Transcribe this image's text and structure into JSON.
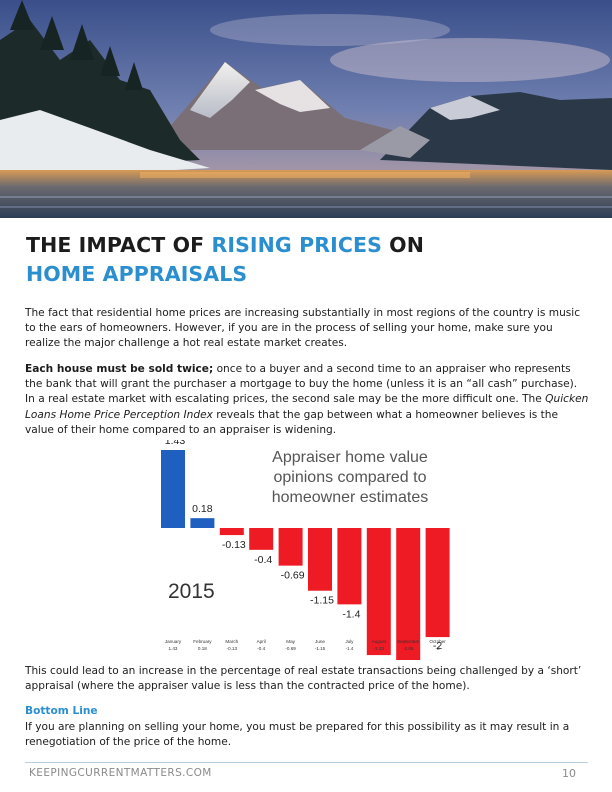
{
  "hero": {
    "image": "mountain-lake-landscape"
  },
  "title": {
    "part1": "THE IMPACT OF ",
    "accent": "RISING PRICES",
    "part2": " ON",
    "line2": "HOME APPRAISALS"
  },
  "paragraphs": {
    "p1": "The fact that residential home prices are increasing substantially in most regions of the country is music to the ears of homeowners. However, if you are in the process of selling your home, make sure you realize the major challenge a hot real estate market creates.",
    "p2_bold": "Each house must be sold twice;",
    "p2_rest": " once to a buyer and a second time to an appraiser who represents the bank that will grant the purchaser a mortgage to buy the home (unless it is an “all cash” purchase). In a real estate market with escalating prices, the second sale may be the more difficult one. The ",
    "p2_italic": "Quicken Loans Home Price Perception Index",
    "p2_end": " reveals that the gap between what a homeowner believes is the value of their home compared to an appraiser is widening.",
    "p3": "This could lead to an increase in the percentage of real estate transactions being challenged by a ‘short’ appraisal (where the appraiser value is less than the contracted price of the home).",
    "bottom_line_heading": "Bottom Line",
    "p4": "If you are planning on selling your home, you must be prepared for this possibility as it may result in a renegotiation of the price of the home."
  },
  "chart_data": {
    "type": "bar",
    "title": "Appraiser home value opinions compared to homeowner estimates",
    "title_lines": [
      "Appraiser home value",
      "opinions compared to",
      "homeowner estimates"
    ],
    "annotation": "2015",
    "categories": [
      "January",
      "February",
      "March",
      "April",
      "May",
      "June",
      "July",
      "August",
      "September",
      "October"
    ],
    "values": [
      1.43,
      0.18,
      -0.13,
      -0.4,
      -0.69,
      -1.15,
      -1.4,
      -2.33,
      -2.65,
      -2
    ],
    "value_labels": [
      "1.43",
      "0.18",
      "-0.13",
      "-0.4",
      "-0.69",
      "-1.15",
      "-1.4",
      "-2.33",
      "-2.65",
      "-2"
    ],
    "table_values": [
      "1.43",
      "0.18",
      "-0.13",
      "-0.4",
      "-0.69",
      "-1.15",
      "-1.4",
      "-2.33",
      "-2.65",
      "-2"
    ],
    "colors": {
      "positive": "#1f5fbf",
      "negative": "#ee1b24"
    },
    "ylim": [
      -2.65,
      1.43
    ],
    "grid": false
  },
  "footer": {
    "site": "KEEPINGCURRENTMATTERS.COM",
    "page": "10"
  }
}
